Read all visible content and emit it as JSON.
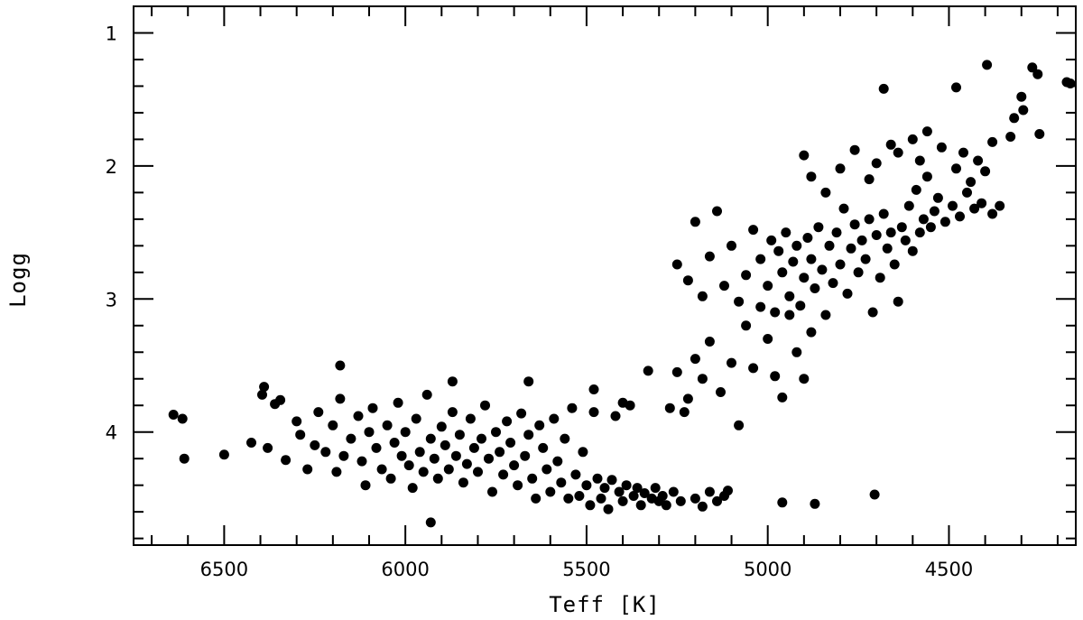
{
  "chart_data": {
    "type": "scatter",
    "xlabel": "Teff [K]",
    "ylabel": "Logg",
    "xlim": [
      6750,
      4150
    ],
    "ylim": [
      0.8,
      4.85
    ],
    "x_reversed": true,
    "y_reversed": true,
    "x_ticks_major": [
      6500,
      6000,
      5500,
      5000,
      4500
    ],
    "x_ticks_minor_step": 100,
    "y_ticks_major": [
      1,
      2,
      3,
      4
    ],
    "y_ticks_minor_step": 0.2,
    "grid": false,
    "legend": "none",
    "point_color": "#000000",
    "points": [
      [
        6640,
        3.87
      ],
      [
        6615,
        3.9
      ],
      [
        6610,
        4.2
      ],
      [
        6500,
        4.17
      ],
      [
        6425,
        4.08
      ],
      [
        6395,
        3.72
      ],
      [
        6390,
        3.66
      ],
      [
        6380,
        4.12
      ],
      [
        6360,
        3.79
      ],
      [
        6345,
        3.76
      ],
      [
        6330,
        4.21
      ],
      [
        6300,
        3.92
      ],
      [
        6290,
        4.02
      ],
      [
        6270,
        4.28
      ],
      [
        6250,
        4.1
      ],
      [
        6240,
        3.85
      ],
      [
        6220,
        4.15
      ],
      [
        6200,
        3.95
      ],
      [
        6190,
        4.3
      ],
      [
        6180,
        3.75
      ],
      [
        6170,
        4.18
      ],
      [
        6150,
        4.05
      ],
      [
        6130,
        3.88
      ],
      [
        6120,
        4.22
      ],
      [
        6110,
        4.4
      ],
      [
        6100,
        4.0
      ],
      [
        6090,
        3.82
      ],
      [
        6080,
        4.12
      ],
      [
        6065,
        4.28
      ],
      [
        6050,
        3.95
      ],
      [
        6040,
        4.35
      ],
      [
        6030,
        4.08
      ],
      [
        6020,
        3.78
      ],
      [
        6010,
        4.18
      ],
      [
        6000,
        4.0
      ],
      [
        5990,
        4.25
      ],
      [
        5980,
        4.42
      ],
      [
        5970,
        3.9
      ],
      [
        5960,
        4.15
      ],
      [
        5950,
        4.3
      ],
      [
        5940,
        3.72
      ],
      [
        5930,
        4.05
      ],
      [
        5920,
        4.2
      ],
      [
        5910,
        4.35
      ],
      [
        5900,
        3.96
      ],
      [
        5890,
        4.1
      ],
      [
        5880,
        4.28
      ],
      [
        5870,
        3.85
      ],
      [
        5860,
        4.18
      ],
      [
        5850,
        4.02
      ],
      [
        5840,
        4.38
      ],
      [
        5830,
        4.24
      ],
      [
        5820,
        3.9
      ],
      [
        5810,
        4.12
      ],
      [
        5800,
        4.3
      ],
      [
        5790,
        4.05
      ],
      [
        5780,
        3.8
      ],
      [
        5770,
        4.2
      ],
      [
        5760,
        4.45
      ],
      [
        5750,
        4.0
      ],
      [
        5740,
        4.15
      ],
      [
        5730,
        4.32
      ],
      [
        5720,
        3.92
      ],
      [
        5710,
        4.08
      ],
      [
        5700,
        4.25
      ],
      [
        5690,
        4.4
      ],
      [
        5680,
        3.86
      ],
      [
        5670,
        4.18
      ],
      [
        5660,
        4.02
      ],
      [
        5650,
        4.35
      ],
      [
        5640,
        4.5
      ],
      [
        5630,
        3.95
      ],
      [
        5620,
        4.12
      ],
      [
        5610,
        4.28
      ],
      [
        5600,
        4.45
      ],
      [
        5590,
        3.9
      ],
      [
        5580,
        4.22
      ],
      [
        5570,
        4.38
      ],
      [
        5560,
        4.05
      ],
      [
        5550,
        4.5
      ],
      [
        5540,
        3.82
      ],
      [
        5530,
        4.32
      ],
      [
        5520,
        4.48
      ],
      [
        5510,
        4.15
      ],
      [
        5500,
        4.4
      ],
      [
        5490,
        4.55
      ],
      [
        5480,
        3.85
      ],
      [
        5470,
        4.35
      ],
      [
        5460,
        4.5
      ],
      [
        5450,
        4.42
      ],
      [
        5440,
        4.58
      ],
      [
        5430,
        4.36
      ],
      [
        5420,
        3.88
      ],
      [
        5410,
        4.45
      ],
      [
        5400,
        4.52
      ],
      [
        5390,
        4.4
      ],
      [
        5380,
        3.8
      ],
      [
        5370,
        4.48
      ],
      [
        5360,
        4.42
      ],
      [
        5350,
        4.55
      ],
      [
        5340,
        4.46
      ],
      [
        5330,
        3.54
      ],
      [
        5320,
        4.5
      ],
      [
        5310,
        4.42
      ],
      [
        5300,
        4.52
      ],
      [
        5290,
        4.48
      ],
      [
        5280,
        4.55
      ],
      [
        5270,
        3.82
      ],
      [
        5260,
        4.45
      ],
      [
        5240,
        4.52
      ],
      [
        5220,
        3.75
      ],
      [
        5200,
        4.5
      ],
      [
        5180,
        4.56
      ],
      [
        5160,
        4.45
      ],
      [
        5140,
        4.52
      ],
      [
        5120,
        4.48
      ],
      [
        5110,
        4.44
      ],
      [
        6180,
        3.5
      ],
      [
        5930,
        4.68
      ],
      [
        5870,
        3.62
      ],
      [
        5660,
        3.62
      ],
      [
        5480,
        3.68
      ],
      [
        5400,
        3.78
      ],
      [
        4960,
        4.53
      ],
      [
        4870,
        4.54
      ],
      [
        4705,
        4.47
      ],
      [
        5250,
        3.55
      ],
      [
        5230,
        3.85
      ],
      [
        5200,
        3.45
      ],
      [
        5180,
        3.6
      ],
      [
        5160,
        3.32
      ],
      [
        5130,
        3.7
      ],
      [
        5100,
        3.48
      ],
      [
        5080,
        3.95
      ],
      [
        5060,
        3.2
      ],
      [
        5040,
        3.52
      ],
      [
        5020,
        3.06
      ],
      [
        5000,
        3.3
      ],
      [
        4980,
        3.58
      ],
      [
        4960,
        3.74
      ],
      [
        4940,
        3.12
      ],
      [
        4920,
        3.4
      ],
      [
        4900,
        3.6
      ],
      [
        4880,
        3.25
      ],
      [
        5250,
        2.74
      ],
      [
        5220,
        2.86
      ],
      [
        5200,
        2.42
      ],
      [
        5180,
        2.98
      ],
      [
        5160,
        2.68
      ],
      [
        5140,
        2.34
      ],
      [
        5120,
        2.9
      ],
      [
        5100,
        2.6
      ],
      [
        5080,
        3.02
      ],
      [
        5060,
        2.82
      ],
      [
        5040,
        2.48
      ],
      [
        5020,
        2.7
      ],
      [
        5000,
        2.9
      ],
      [
        4990,
        2.56
      ],
      [
        4980,
        3.1
      ],
      [
        4970,
        2.64
      ],
      [
        4960,
        2.8
      ],
      [
        4950,
        2.5
      ],
      [
        4940,
        2.98
      ],
      [
        4930,
        2.72
      ],
      [
        4920,
        2.6
      ],
      [
        4910,
        3.05
      ],
      [
        4900,
        2.84
      ],
      [
        4890,
        2.54
      ],
      [
        4880,
        2.7
      ],
      [
        4870,
        2.92
      ],
      [
        4860,
        2.46
      ],
      [
        4850,
        2.78
      ],
      [
        4840,
        3.12
      ],
      [
        4830,
        2.6
      ],
      [
        4820,
        2.88
      ],
      [
        4810,
        2.5
      ],
      [
        4800,
        2.74
      ],
      [
        4790,
        2.32
      ],
      [
        4780,
        2.96
      ],
      [
        4770,
        2.62
      ],
      [
        4760,
        2.44
      ],
      [
        4750,
        2.8
      ],
      [
        4740,
        2.56
      ],
      [
        4730,
        2.7
      ],
      [
        4720,
        2.4
      ],
      [
        4710,
        3.1
      ],
      [
        4700,
        2.52
      ],
      [
        4690,
        2.84
      ],
      [
        4680,
        2.36
      ],
      [
        4670,
        2.62
      ],
      [
        4660,
        2.5
      ],
      [
        4650,
        2.74
      ],
      [
        4640,
        3.02
      ],
      [
        4630,
        2.46
      ],
      [
        4620,
        2.56
      ],
      [
        4610,
        2.3
      ],
      [
        4600,
        2.64
      ],
      [
        4590,
        2.18
      ],
      [
        4580,
        2.5
      ],
      [
        4570,
        2.4
      ],
      [
        4560,
        2.08
      ],
      [
        4550,
        2.46
      ],
      [
        4540,
        2.34
      ],
      [
        4530,
        2.24
      ],
      [
        4510,
        2.42
      ],
      [
        4490,
        2.3
      ],
      [
        4470,
        2.38
      ],
      [
        4450,
        2.2
      ],
      [
        4430,
        2.32
      ],
      [
        4410,
        2.28
      ],
      [
        4380,
        2.36
      ],
      [
        4360,
        2.3
      ],
      [
        4900,
        1.92
      ],
      [
        4880,
        2.08
      ],
      [
        4840,
        2.2
      ],
      [
        4800,
        2.02
      ],
      [
        4760,
        1.88
      ],
      [
        4720,
        2.1
      ],
      [
        4700,
        1.98
      ],
      [
        4660,
        1.84
      ],
      [
        4640,
        1.9
      ],
      [
        4600,
        1.8
      ],
      [
        4580,
        1.96
      ],
      [
        4560,
        1.74
      ],
      [
        4520,
        1.86
      ],
      [
        4480,
        2.02
      ],
      [
        4460,
        1.9
      ],
      [
        4440,
        2.12
      ],
      [
        4420,
        1.96
      ],
      [
        4400,
        2.04
      ],
      [
        4380,
        1.82
      ],
      [
        4680,
        1.42
      ],
      [
        4480,
        1.41
      ],
      [
        4395,
        1.24
      ],
      [
        4330,
        1.78
      ],
      [
        4320,
        1.64
      ],
      [
        4300,
        1.48
      ],
      [
        4295,
        1.58
      ],
      [
        4270,
        1.26
      ],
      [
        4255,
        1.31
      ],
      [
        4250,
        1.76
      ],
      [
        4175,
        1.37
      ],
      [
        4165,
        1.38
      ]
    ]
  }
}
